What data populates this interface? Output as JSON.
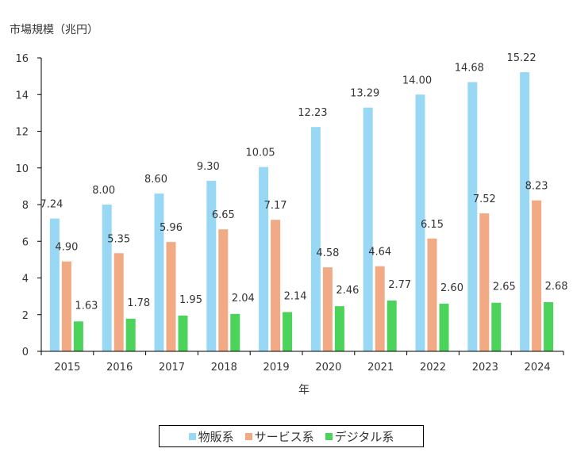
{
  "chart_data": {
    "type": "bar",
    "title": "",
    "ylabel": "市場規模（兆円）",
    "xlabel": "年",
    "ylim": [
      0,
      16
    ],
    "yticks": [
      0,
      2,
      4,
      6,
      8,
      10,
      12,
      14,
      16
    ],
    "grid": false,
    "legend_position": "bottom",
    "categories": [
      "2015",
      "2016",
      "2017",
      "2018",
      "2019",
      "2020",
      "2021",
      "2022",
      "2023",
      "2024"
    ],
    "series": [
      {
        "name": "物販系",
        "color": "#98d8f5",
        "values": [
          7.24,
          8.0,
          8.6,
          9.3,
          10.05,
          12.23,
          13.29,
          14.0,
          14.68,
          15.22
        ]
      },
      {
        "name": "サービス系",
        "color": "#f2aa84",
        "values": [
          4.9,
          5.35,
          5.96,
          6.65,
          7.17,
          4.58,
          4.64,
          6.15,
          7.52,
          8.23
        ]
      },
      {
        "name": "デジタル系",
        "color": "#4cd35c",
        "values": [
          1.63,
          1.78,
          1.95,
          2.04,
          2.14,
          2.46,
          2.77,
          2.6,
          2.65,
          2.68
        ]
      }
    ]
  }
}
